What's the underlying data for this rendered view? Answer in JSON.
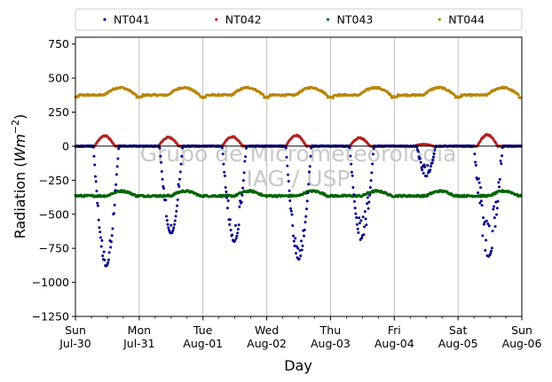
{
  "chart_data": {
    "type": "scatter",
    "title": "",
    "xlabel": "Day",
    "ylabel_prefix": "Radiation (",
    "ylabel_unit_base": "Wm",
    "ylabel_unit_exp": "−2",
    "ylabel_suffix": ")",
    "ylim": [
      -1250,
      800
    ],
    "yticks": [
      750,
      500,
      250,
      0,
      -250,
      -500,
      -750,
      -1000,
      -1250
    ],
    "ytick_labels": [
      "750",
      "500",
      "250",
      "0",
      "−250",
      "−500",
      "−750",
      "−1000",
      "−1250"
    ],
    "xlim_days": [
      0,
      7
    ],
    "xticks": [
      {
        "day": 0,
        "line1": "Sun",
        "line2": "Jul-30"
      },
      {
        "day": 1,
        "line1": "Mon",
        "line2": "Jul-31"
      },
      {
        "day": 2,
        "line1": "Tue",
        "line2": "Aug-01"
      },
      {
        "day": 3,
        "line1": "Wed",
        "line2": "Aug-02"
      },
      {
        "day": 4,
        "line1": "Thu",
        "line2": "Aug-03"
      },
      {
        "day": 5,
        "line1": "Fri",
        "line2": "Aug-04"
      },
      {
        "day": 6,
        "line1": "Sat",
        "line2": "Aug-05"
      },
      {
        "day": 7,
        "line1": "Sun",
        "line2": "Aug-06"
      }
    ],
    "grid": "vertical",
    "legend_position": "top",
    "watermark_lines": [
      "Grupo de Micrometeorologia",
      "IAG / USP"
    ],
    "series": [
      {
        "name": "NT041",
        "color": "#00008b",
        "by_day": [
          {
            "day": 0,
            "min": -880,
            "start": 0.28,
            "end": 0.68,
            "scatter": 0.12
          },
          {
            "day": 1,
            "min": -640,
            "start": 0.32,
            "end": 0.68,
            "scatter": 0.2
          },
          {
            "day": 2,
            "min": -700,
            "start": 0.3,
            "end": 0.68,
            "scatter": 0.25
          },
          {
            "day": 3,
            "min": -830,
            "start": 0.3,
            "end": 0.7,
            "scatter": 0.12
          },
          {
            "day": 4,
            "min": -700,
            "start": 0.3,
            "end": 0.68,
            "scatter": 0.25
          },
          {
            "day": 5,
            "min": -220,
            "start": 0.35,
            "end": 0.65,
            "scatter": 0.35
          },
          {
            "day": 6,
            "min": -810,
            "start": 0.25,
            "end": 0.7,
            "scatter": 0.45
          }
        ]
      },
      {
        "name": "NT042",
        "color": "#b22222",
        "by_day": [
          {
            "day": 0,
            "max": 80
          },
          {
            "day": 1,
            "max": 70
          },
          {
            "day": 2,
            "max": 75
          },
          {
            "day": 3,
            "max": 85
          },
          {
            "day": 4,
            "max": 65
          },
          {
            "day": 5,
            "max": 15
          },
          {
            "day": 6,
            "max": 90
          }
        ]
      },
      {
        "name": "NT043",
        "color": "#006400",
        "base": -365,
        "range": [
          -400,
          -310
        ]
      },
      {
        "name": "NT044",
        "color": "#b8860b",
        "base": 375,
        "range": [
          345,
          455
        ]
      }
    ]
  }
}
